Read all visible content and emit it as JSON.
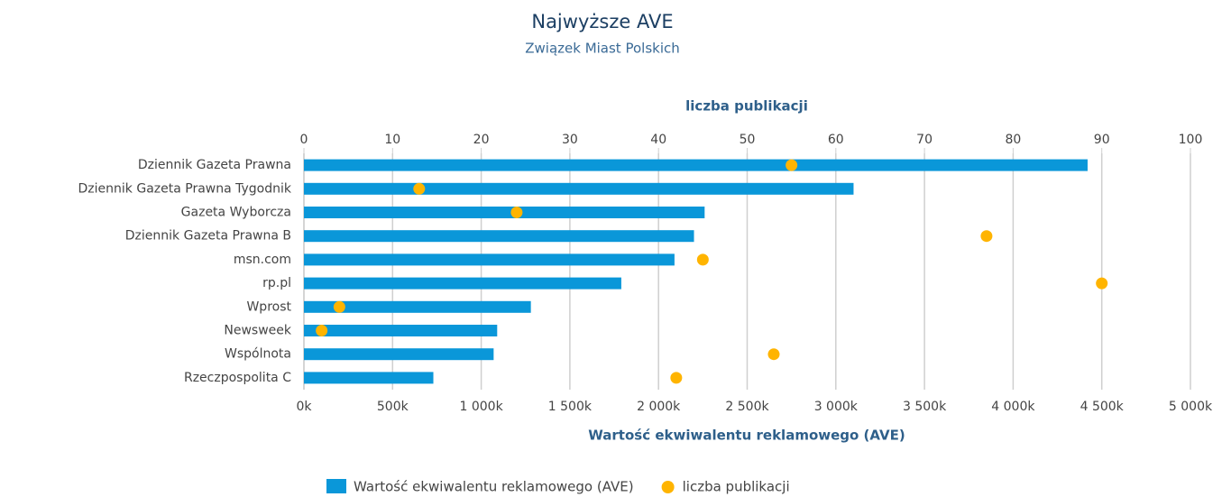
{
  "chart_data": {
    "type": "bar",
    "orientation": "horizontal",
    "title": "Najwyższe AVE",
    "subtitle": "Związek Miast Polskich",
    "x_label": "Wartość ekwiwalentu reklamowego (AVE)",
    "x2_label": "liczba publikacji",
    "categories": [
      "Dziennik Gazeta Prawna",
      "Dziennik Gazeta Prawna Tygodnik",
      "Gazeta Wyborcza",
      "Dziennik Gazeta Prawna B",
      "msn.com",
      "rp.pl",
      "Wprost",
      "Newsweek",
      "Wspólnota",
      "Rzeczpospolita C"
    ],
    "series": [
      {
        "name": "Wartość ekwiwalentu reklamowego (AVE)",
        "type": "bar",
        "color": "#0a97d9",
        "values": [
          4420000,
          3100000,
          2260000,
          2200000,
          2090000,
          1790000,
          1280000,
          1090000,
          1070000,
          730000
        ]
      },
      {
        "name": "liczba publikacji",
        "type": "scatter",
        "axis": "x2",
        "color": "#ffb400",
        "values": [
          55,
          13,
          24,
          77,
          45,
          90,
          4,
          2,
          53,
          42
        ]
      }
    ],
    "xlim": [
      0,
      5000000
    ],
    "xticks": [
      {
        "value": 0,
        "label": "0k"
      },
      {
        "value": 500000,
        "label": "500k"
      },
      {
        "value": 1000000,
        "label": "1 000k"
      },
      {
        "value": 1500000,
        "label": "1 500k"
      },
      {
        "value": 2000000,
        "label": "2 000k"
      },
      {
        "value": 2500000,
        "label": "2 500k"
      },
      {
        "value": 3000000,
        "label": "3 000k"
      },
      {
        "value": 3500000,
        "label": "3 500k"
      },
      {
        "value": 4000000,
        "label": "4 000k"
      },
      {
        "value": 4500000,
        "label": "4 500k"
      },
      {
        "value": 5000000,
        "label": "5 000k"
      }
    ],
    "x2lim": [
      0,
      100
    ],
    "x2ticks": [
      0,
      10,
      20,
      30,
      40,
      50,
      60,
      70,
      80,
      90,
      100
    ],
    "grid": true,
    "legend": "bottom"
  }
}
